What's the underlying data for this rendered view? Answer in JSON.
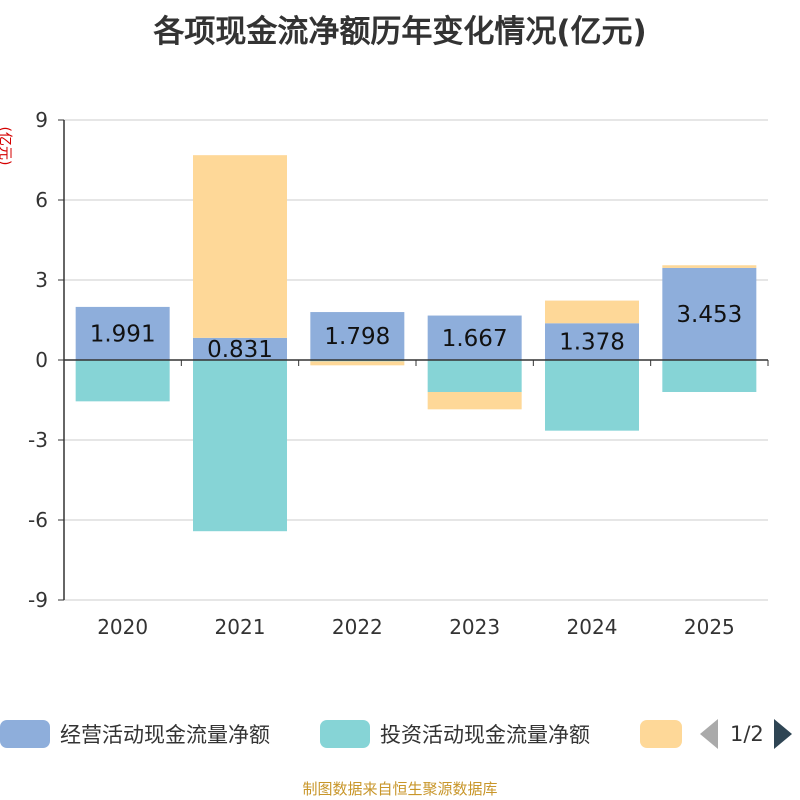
{
  "chart_data": {
    "type": "bar",
    "stacked": true,
    "title": "各项现金流净额历年变化情况(亿元)",
    "ylabel": "(亿元)",
    "xlabel": "",
    "categories": [
      "2020",
      "2021",
      "2022",
      "2023",
      "2024",
      "2025"
    ],
    "ylim": [
      -9,
      9
    ],
    "yticks": [
      9,
      6,
      3,
      0,
      -3,
      -6,
      -9
    ],
    "series": [
      {
        "name": "经营活动现金流量净额",
        "color": "#8eaedb",
        "values": [
          1.991,
          0.831,
          1.798,
          1.667,
          1.378,
          3.453
        ]
      },
      {
        "name": "投资活动现金流量净额",
        "color": "#86d4d6",
        "values": [
          -1.55,
          -6.42,
          -0.05,
          -1.2,
          -2.65,
          -1.2
        ]
      },
      {
        "name": "",
        "color": "#fed898",
        "values": [
          0,
          6.85,
          -0.15,
          -0.65,
          0.85,
          0.1
        ]
      }
    ],
    "data_labels": [
      "1.991",
      "0.831",
      "1.798",
      "1.667",
      "1.378",
      "3.453"
    ]
  },
  "legend": {
    "items": [
      "经营活动现金流量净额",
      "投资活动现金流量净额",
      ""
    ],
    "pager": "1/2"
  },
  "source": "制图数据来自恒生聚源数据库"
}
